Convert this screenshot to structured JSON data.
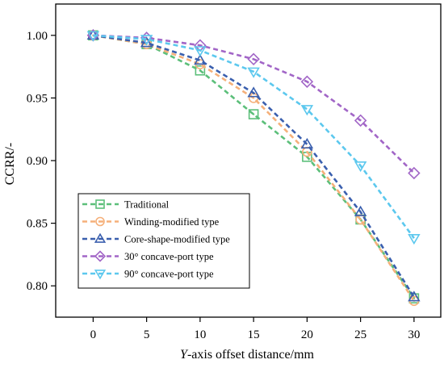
{
  "chart_data": {
    "type": "line",
    "title": "",
    "xlabel_italic": "Y",
    "xlabel_rest": "-axis offset distance/mm",
    "ylabel": "CCRR/-",
    "x": [
      0,
      5,
      10,
      15,
      20,
      25,
      30
    ],
    "xlim": [
      -3.5,
      32.5
    ],
    "ylim": [
      0.775,
      1.025
    ],
    "xticks": [
      0,
      5,
      10,
      15,
      20,
      25,
      30
    ],
    "yticks": [
      0.8,
      0.85,
      0.9,
      0.95,
      1.0
    ],
    "xtick_labels": [
      "0",
      "5",
      "10",
      "15",
      "20",
      "25",
      "30"
    ],
    "ytick_labels": [
      "0.80",
      "0.85",
      "0.90",
      "0.95",
      "1.00"
    ],
    "grid": false,
    "legend_position": "bottom-left",
    "series": [
      {
        "name": "Traditional",
        "marker": "square",
        "color": "#5cbf7a",
        "values": [
          1.0,
          0.993,
          0.972,
          0.937,
          0.903,
          0.853,
          0.79
        ]
      },
      {
        "name": "Winding-modified type",
        "marker": "circle",
        "color": "#f5b07a",
        "values": [
          1.0,
          0.993,
          0.977,
          0.95,
          0.907,
          0.853,
          0.788
        ]
      },
      {
        "name": "Core-shape-modified type",
        "marker": "triangle-up",
        "color": "#3a5fae",
        "values": [
          1.0,
          0.994,
          0.98,
          0.954,
          0.913,
          0.859,
          0.791
        ]
      },
      {
        "name": "30° concave-port type",
        "marker": "diamond",
        "color": "#a266c7",
        "values": [
          1.0,
          0.998,
          0.992,
          0.981,
          0.963,
          0.932,
          0.89
        ]
      },
      {
        "name": "90° concave-port type",
        "marker": "triangle-down",
        "color": "#5cc8ee",
        "values": [
          1.0,
          0.997,
          0.988,
          0.971,
          0.941,
          0.896,
          0.838
        ]
      }
    ]
  }
}
